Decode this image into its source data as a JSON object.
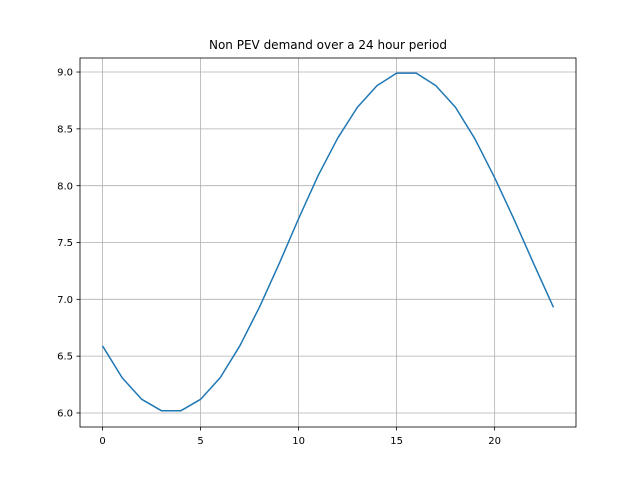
{
  "chart_data": {
    "type": "line",
    "title": "Non PEV demand over a 24 hour period",
    "xlabel": "",
    "ylabel": "",
    "xlim": [
      -1.15,
      24.15
    ],
    "ylim": [
      5.8765,
      9.1235
    ],
    "grid": true,
    "x_ticks": [
      0,
      5,
      10,
      15,
      20
    ],
    "x_tick_labels": [
      "0",
      "5",
      "10",
      "15",
      "20"
    ],
    "y_ticks": [
      6.0,
      6.5,
      7.0,
      7.5,
      8.0,
      8.5,
      9.0
    ],
    "y_tick_labels": [
      "6.0",
      "6.5",
      "7.0",
      "7.5",
      "8.0",
      "8.5",
      "9.0"
    ],
    "series": [
      {
        "color": "#1f77b4",
        "x": [
          0,
          1,
          2,
          3,
          4,
          5,
          6,
          7,
          8,
          9,
          10,
          11,
          12,
          13,
          14,
          15,
          16,
          17,
          18,
          19,
          20,
          21,
          22,
          23
        ],
        "y": [
          6.59,
          6.31,
          6.12,
          6.02,
          6.02,
          6.12,
          6.31,
          6.59,
          6.93,
          7.31,
          7.71,
          8.09,
          8.42,
          8.69,
          8.88,
          8.99,
          8.99,
          8.88,
          8.69,
          8.41,
          8.07,
          7.7,
          7.31,
          6.93
        ]
      }
    ]
  }
}
